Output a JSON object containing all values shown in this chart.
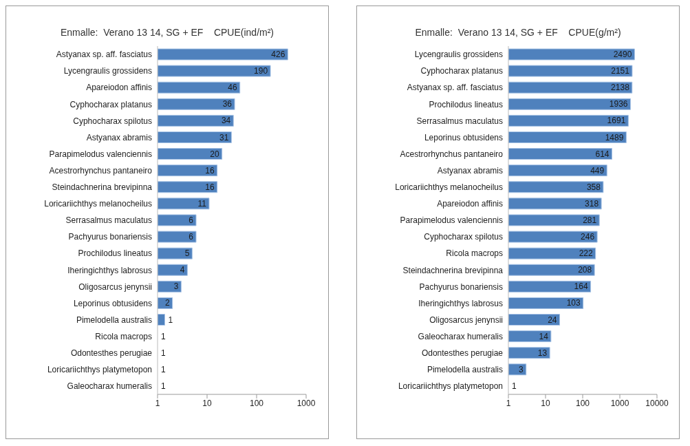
{
  "chart_data": [
    {
      "type": "bar",
      "orientation": "horizontal",
      "title": "Enmalle:  Verano 13 14, SG + EF    CPUE(ind/m²)",
      "categories": [
        "Astyanax sp. aff.  fasciatus",
        "Lycengraulis grossidens",
        "Apareiodon affinis",
        "Cyphocharax platanus",
        "Cyphocharax spilotus",
        "Astyanax abramis",
        "Parapimelodus valenciennis",
        "Acestrorhynchus pantaneiro",
        "Steindachnerina brevipinna",
        "Loricariichthys melanocheilus",
        "Serrasalmus maculatus",
        "Pachyurus bonariensis",
        "Prochilodus lineatus",
        "Iheringichthys labrosus",
        "Oligosarcus jenynsii",
        "Leporinus obtusidens",
        "Pimelodella australis",
        "Ricola macrops",
        "Odontesthes perugiae",
        "Loricariichthys platymetopon",
        "Galeocharax humeralis"
      ],
      "values": [
        426,
        190,
        46,
        36,
        34,
        31,
        20,
        16,
        16,
        11,
        6,
        6,
        5,
        4,
        3,
        2,
        1.4,
        1,
        1,
        1,
        1
      ],
      "value_labels": [
        "426",
        "190",
        "46",
        "36",
        "34",
        "31",
        "20",
        "16",
        "16",
        "11",
        "6",
        "6",
        "5",
        "4",
        "3",
        "2",
        "1",
        "1",
        "1",
        "1",
        "1"
      ],
      "color": "#4f81bd",
      "log": "x",
      "xlim": [
        1,
        1000
      ],
      "xticks": [
        1,
        10,
        100,
        1000
      ],
      "grid": false,
      "legend": false
    },
    {
      "type": "bar",
      "orientation": "horizontal",
      "title": "Enmalle:  Verano 13 14, SG + EF    CPUE(g/m²)",
      "categories": [
        "Lycengraulis grossidens",
        "Cyphocharax platanus",
        "Astyanax sp. aff.  fasciatus",
        "Prochilodus lineatus",
        "Serrasalmus maculatus",
        "Leporinus obtusidens",
        "Acestrorhynchus pantaneiro",
        "Astyanax abramis",
        "Loricariichthys melanocheilus",
        "Apareiodon affinis",
        "Parapimelodus valenciennis",
        "Cyphocharax spilotus",
        "Ricola macrops",
        "Steindachnerina brevipinna",
        "Pachyurus bonariensis",
        "Iheringichthys labrosus",
        "Oligosarcus jenynsii",
        "Galeocharax humeralis",
        "Odontesthes perugiae",
        "Pimelodella australis",
        "Loricariichthys platymetopon"
      ],
      "values": [
        2490,
        2151,
        2138,
        1936,
        1691,
        1489,
        614,
        449,
        358,
        318,
        281,
        246,
        222,
        208,
        164,
        103,
        24,
        14,
        13,
        3,
        1
      ],
      "color": "#4f81bd",
      "log": "x",
      "xlim": [
        1,
        10000
      ],
      "xticks": [
        1,
        10,
        100,
        1000,
        10000
      ],
      "data_labels": true,
      "grid": false,
      "legend": false
    }
  ]
}
